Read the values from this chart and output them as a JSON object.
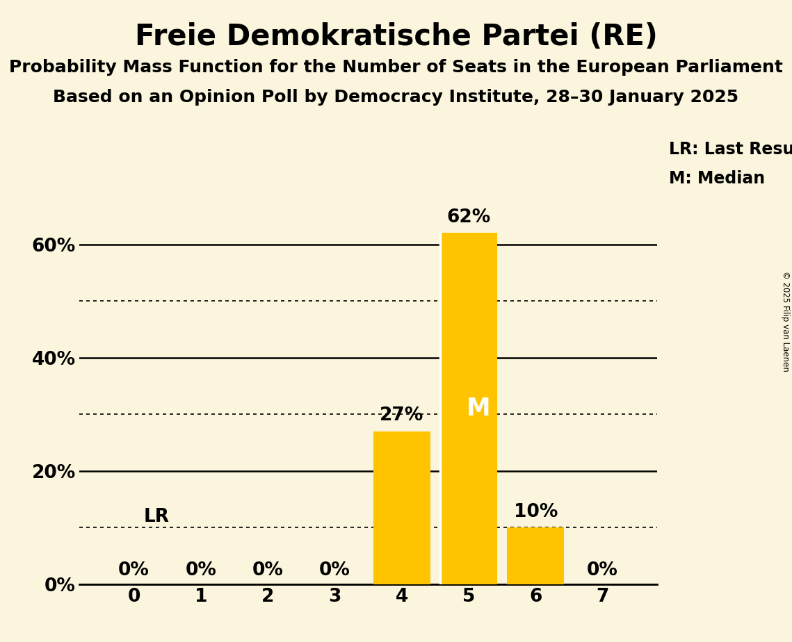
{
  "title": "Freie Demokratische Partei (RE)",
  "subtitle1": "Probability Mass Function for the Number of Seats in the European Parliament",
  "subtitle2": "Based on an Opinion Poll by Democracy Institute, 28–30 January 2025",
  "copyright": "© 2025 Filip van Laenen",
  "categories": [
    0,
    1,
    2,
    3,
    4,
    5,
    6,
    7
  ],
  "values": [
    0,
    0,
    0,
    0,
    27,
    62,
    10,
    0
  ],
  "bar_color": "#FFC300",
  "background_color": "#FAF5DC",
  "median_seat": 5,
  "last_result_seat": 0,
  "median_label": "M",
  "lr_label": "LR",
  "legend_lr": "LR: Last Result",
  "legend_m": "M: Median",
  "yticks_solid": [
    0,
    20,
    40,
    60
  ],
  "yticks_dotted": [
    10,
    30,
    50
  ],
  "ylim": [
    0,
    68
  ],
  "title_fontsize": 30,
  "subtitle_fontsize": 18,
  "tick_fontsize": 19,
  "annotation_fontsize": 19,
  "legend_fontsize": 17,
  "lr_fontsize": 19
}
